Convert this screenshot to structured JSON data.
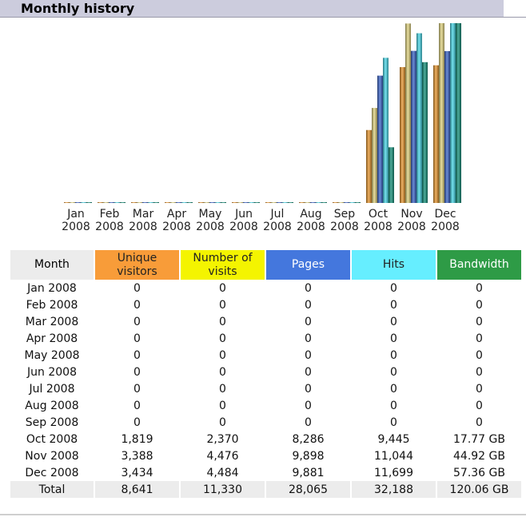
{
  "header": {
    "title": "Monthly history"
  },
  "colors": {
    "visitors": "#e8962d",
    "visits": "#e2d47f",
    "pages": "#3a64c9",
    "hits": "#47d8ea",
    "bandwidth": "#13907a",
    "header_bg": "#ccccdd"
  },
  "chart_data": {
    "type": "bar",
    "categories": [
      "Jan 2008",
      "Feb 2008",
      "Mar 2008",
      "Apr 2008",
      "May 2008",
      "Jun 2008",
      "Jul 2008",
      "Aug 2008",
      "Sep 2008",
      "Oct 2008",
      "Nov 2008",
      "Dec 2008"
    ],
    "tick_labels": [
      [
        "Jan",
        "2008"
      ],
      [
        "Feb",
        "2008"
      ],
      [
        "Mar",
        "2008"
      ],
      [
        "Apr",
        "2008"
      ],
      [
        "May",
        "2008"
      ],
      [
        "Jun",
        "2008"
      ],
      [
        "Jul",
        "2008"
      ],
      [
        "Aug",
        "2008"
      ],
      [
        "Sep",
        "2008"
      ],
      [
        "Oct",
        "2008"
      ],
      [
        "Nov",
        "2008"
      ],
      [
        "Dec",
        "2008"
      ]
    ],
    "series": [
      {
        "name": "Unique visitors",
        "values": [
          0,
          0,
          0,
          0,
          0,
          0,
          0,
          0,
          0,
          1819,
          3388,
          3434
        ],
        "color": "#e8962d"
      },
      {
        "name": "Number of visits",
        "values": [
          0,
          0,
          0,
          0,
          0,
          0,
          0,
          0,
          0,
          2370,
          4476,
          4484
        ],
        "color": "#e2d47f"
      },
      {
        "name": "Pages",
        "values": [
          0,
          0,
          0,
          0,
          0,
          0,
          0,
          0,
          0,
          8286,
          9898,
          9881
        ],
        "color": "#3a64c9"
      },
      {
        "name": "Hits",
        "values": [
          0,
          0,
          0,
          0,
          0,
          0,
          0,
          0,
          0,
          9445,
          11044,
          11699
        ],
        "color": "#47d8ea"
      },
      {
        "name": "Bandwidth",
        "values": [
          0,
          0,
          0,
          0,
          0,
          0,
          0,
          0,
          0,
          17.77,
          44.92,
          57.36
        ],
        "color": "#13907a",
        "unit": "GB"
      }
    ],
    "scale_groups": [
      [
        0,
        1
      ],
      [
        2,
        3
      ],
      [
        4
      ]
    ],
    "legend": "none",
    "grid": false
  },
  "table": {
    "headers": {
      "month": "Month",
      "visitors_line1": "Unique",
      "visitors_line2": "visitors",
      "visits_line1": "Number of",
      "visits_line2": "visits",
      "pages": "Pages",
      "hits": "Hits",
      "bandwidth": "Bandwidth"
    },
    "rows": [
      [
        "Jan 2008",
        "0",
        "0",
        "0",
        "0",
        "0"
      ],
      [
        "Feb 2008",
        "0",
        "0",
        "0",
        "0",
        "0"
      ],
      [
        "Mar 2008",
        "0",
        "0",
        "0",
        "0",
        "0"
      ],
      [
        "Apr 2008",
        "0",
        "0",
        "0",
        "0",
        "0"
      ],
      [
        "May 2008",
        "0",
        "0",
        "0",
        "0",
        "0"
      ],
      [
        "Jun 2008",
        "0",
        "0",
        "0",
        "0",
        "0"
      ],
      [
        "Jul 2008",
        "0",
        "0",
        "0",
        "0",
        "0"
      ],
      [
        "Aug 2008",
        "0",
        "0",
        "0",
        "0",
        "0"
      ],
      [
        "Sep 2008",
        "0",
        "0",
        "0",
        "0",
        "0"
      ],
      [
        "Oct 2008",
        "1,819",
        "2,370",
        "8,286",
        "9,445",
        "17.77 GB"
      ],
      [
        "Nov 2008",
        "3,388",
        "4,476",
        "9,898",
        "11,044",
        "44.92 GB"
      ],
      [
        "Dec 2008",
        "3,434",
        "4,484",
        "9,881",
        "11,699",
        "57.36 GB"
      ]
    ],
    "total": [
      "Total",
      "8,641",
      "11,330",
      "28,065",
      "32,188",
      "120.06 GB"
    ]
  }
}
